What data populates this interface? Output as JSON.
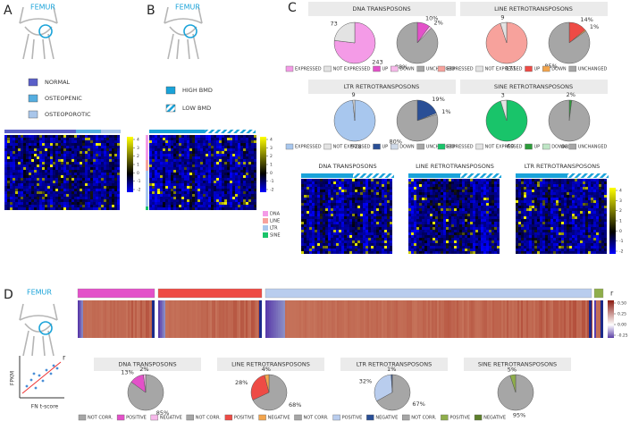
{
  "panels": {
    "A": {
      "label": "A",
      "site": "FEMUR",
      "legend": [
        {
          "name": "NORMAL",
          "color": "#5a5fc8"
        },
        {
          "name": "OSTEOPENIC",
          "color": "#55aee0"
        },
        {
          "name": "OSTEOPOROTIC",
          "color": "#a9c6ea"
        }
      ],
      "colorbar_ticks": [
        4,
        3,
        2,
        1,
        0,
        -1,
        -2
      ]
    },
    "B": {
      "label": "B",
      "site": "FEMUR",
      "legend": [
        {
          "name": "HIGH BMD",
          "color": "#1aa3d9"
        },
        {
          "name": "LOW BMD"
        }
      ],
      "colorbar_ticks": [
        4,
        3,
        2,
        1,
        0,
        -1,
        -2
      ],
      "families": [
        {
          "name": "DNA",
          "color": "#f49be7"
        },
        {
          "name": "LINE",
          "color": "#f7a29c"
        },
        {
          "name": "LTR",
          "color": "#a8c7ee"
        },
        {
          "name": "SINE",
          "color": "#19c46a"
        }
      ]
    },
    "C": {
      "label": "C",
      "families": [
        {
          "title": "DNA TRANSPOSONS",
          "expression": [
            {
              "name": "EXPRESSED",
              "color": "#f49be7",
              "value": 243
            },
            {
              "name": "NOT EXPRESSED",
              "color": "#e3e3e3",
              "value": 73
            }
          ],
          "de": [
            {
              "name": "UP",
              "color": "#e351c9",
              "value": 10,
              "value_label": "10%"
            },
            {
              "name": "DOWN",
              "color": "#f7b9ea",
              "value": 2,
              "value_label": "2%"
            },
            {
              "name": "UNCHANGED",
              "color": "#a6a6a6",
              "value": 88,
              "value_label": "88%"
            }
          ]
        },
        {
          "title": "LINE RETROTRANSPOSONS",
          "expression": [
            {
              "name": "EXPRESSED",
              "color": "#f7a29c",
              "value": 171
            },
            {
              "name": "NOT EXPRESSED",
              "color": "#e3e3e3",
              "value": 9
            }
          ],
          "de": [
            {
              "name": "UP",
              "color": "#ee4b45",
              "value": 14,
              "value_label": "14%"
            },
            {
              "name": "DOWN",
              "color": "#f3a54d",
              "value": 1,
              "value_label": "1%"
            },
            {
              "name": "UNCHANGED",
              "color": "#a6a6a6",
              "value": 85,
              "value_label": "85%"
            }
          ]
        },
        {
          "title": "LTR RETROTRANSPOSONS",
          "expression": [
            {
              "name": "EXPRESSED",
              "color": "#a8c7ee",
              "value": 578
            },
            {
              "name": "NOT EXPRESSED",
              "color": "#e3e3e3",
              "value": 9
            }
          ],
          "de": [
            {
              "name": "UP",
              "color": "#2a4f96",
              "value": 19,
              "value_label": "19%"
            },
            {
              "name": "DOWN",
              "color": "#cfd9e8",
              "value": 1,
              "value_label": "1%"
            },
            {
              "name": "UNCHANGED",
              "color": "#a6a6a6",
              "value": 80,
              "value_label": "80%"
            }
          ]
        },
        {
          "title": "SINE RETROTRANSPOSONS",
          "expression": [
            {
              "name": "EXPRESSED",
              "color": "#19c46a",
              "value": 60
            },
            {
              "name": "NOT EXPRESSED",
              "color": "#e3e3e3",
              "value": 3
            }
          ],
          "de": [
            {
              "name": "UP",
              "color": "#2d9c3a",
              "value": 2,
              "value_label": "2%"
            },
            {
              "name": "DOWN",
              "color": "#bfe6c6"
            },
            {
              "name": "UNCHANGED",
              "color": "#a6a6a6",
              "value": 98,
              "value_label": "98%"
            }
          ]
        }
      ],
      "heatmaps": [
        "DNA TRANSPOSONS",
        "LINE RETROTRANSPOSONS",
        "LTR RETROTRANSPOSONS"
      ],
      "colorbar_ticks": [
        4,
        3,
        2,
        1,
        0,
        -1,
        -2
      ]
    },
    "D": {
      "label": "D",
      "site": "FEMUR",
      "colorbar_title": "r",
      "colorbar_ticks": [
        {
          "value": 0.5,
          "label": "0.50"
        },
        {
          "value": 0.25,
          "label": "0.25"
        },
        {
          "value": 0,
          "label": "0.00"
        },
        {
          "value": -0.25,
          "label": "-0.25"
        }
      ],
      "scatter_icon": {
        "x_label": "FN t-score",
        "y_label": "FPKM",
        "r_label": "r"
      },
      "families": [
        {
          "title": "DNA TRANSPOSONS",
          "slices": [
            {
              "name": "NOT CORR.",
              "color": "#a6a6a6",
              "value": 85,
              "value_label": "85%"
            },
            {
              "name": "POSITIVE",
              "color": "#e351c9",
              "value": 13,
              "value_label": "13%"
            },
            {
              "name": "NEGATIVE",
              "color": "#f7b9ea",
              "value": 2,
              "value_label": "2%"
            }
          ]
        },
        {
          "title": "LINE RETROTRANSPOSONS",
          "slices": [
            {
              "name": "NOT CORR.",
              "color": "#a6a6a6",
              "value": 68,
              "value_label": "68%"
            },
            {
              "name": "POSITIVE",
              "color": "#ee4b45",
              "value": 28,
              "value_label": "28%"
            },
            {
              "name": "NEGATIVE",
              "color": "#f3a54d",
              "value": 4,
              "value_label": "4%"
            }
          ]
        },
        {
          "title": "LTR RETROTRANSPOSONS",
          "slices": [
            {
              "name": "NOT CORR.",
              "color": "#a6a6a6",
              "value": 67,
              "value_label": "67%"
            },
            {
              "name": "POSITIVE",
              "color": "#b9cdee",
              "value": 32,
              "value_label": "32%"
            },
            {
              "name": "NEGATIVE",
              "color": "#2a4f96",
              "value": 1,
              "value_label": "1%"
            }
          ]
        },
        {
          "title": "SINE RETROTRANSPOSONS",
          "slices": [
            {
              "name": "NOT CORR.",
              "color": "#a6a6a6",
              "value": 95,
              "value_label": "95%"
            },
            {
              "name": "POSITIVE",
              "color": "#8fae4a",
              "value": 5,
              "value_label": "5%"
            },
            {
              "name": "NEGATIVE",
              "color": "#5d7f2c"
            }
          ]
        }
      ]
    }
  }
}
